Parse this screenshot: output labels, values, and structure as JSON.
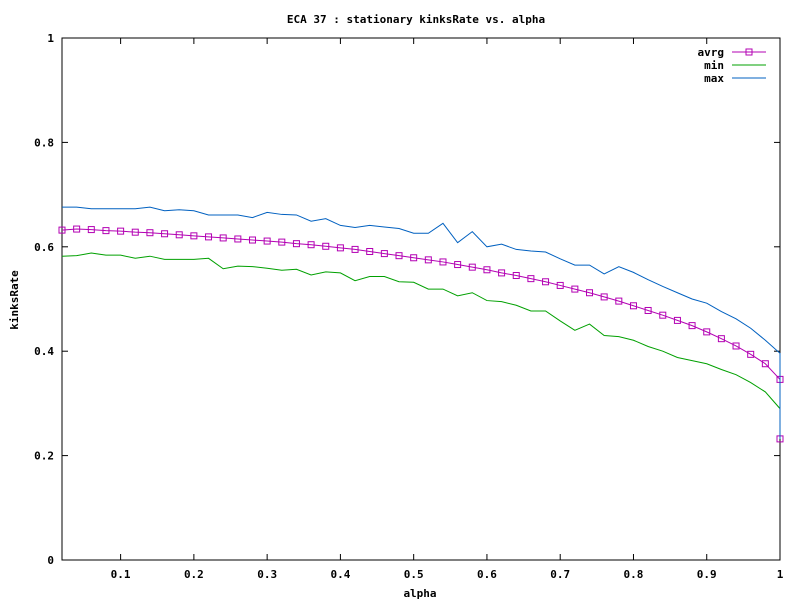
{
  "chart_data": {
    "type": "line",
    "title": "ECA 37 : stationary kinksRate vs. alpha",
    "xlabel": "alpha",
    "ylabel": "kinksRate",
    "xlim": [
      0.02,
      1.0
    ],
    "ylim": [
      0,
      1
    ],
    "xticks": [
      0.1,
      0.2,
      0.3,
      0.4,
      0.5,
      0.6,
      0.7,
      0.8,
      0.9,
      1
    ],
    "xtick_labels": [
      "0.1",
      "0.2",
      "0.3",
      "0.4",
      "0.5",
      "0.6",
      "0.7",
      "0.8",
      "0.9",
      "1"
    ],
    "yticks": [
      0,
      0.2,
      0.4,
      0.6,
      0.8,
      1
    ],
    "ytick_labels": [
      "0",
      "0.2",
      "0.4",
      "0.6",
      "0.8",
      "1"
    ],
    "grid": false,
    "legend_position": "top-right",
    "x": [
      0.02,
      0.04,
      0.06,
      0.08,
      0.1,
      0.12,
      0.14,
      0.16,
      0.18,
      0.2,
      0.22,
      0.24,
      0.26,
      0.28,
      0.3,
      0.32,
      0.34,
      0.36,
      0.38,
      0.4,
      0.42,
      0.44,
      0.46,
      0.48,
      0.5,
      0.52,
      0.54,
      0.56,
      0.58,
      0.6,
      0.62,
      0.64,
      0.66,
      0.68,
      0.7,
      0.72,
      0.74,
      0.76,
      0.78,
      0.8,
      0.82,
      0.84,
      0.86,
      0.88,
      0.9,
      0.92,
      0.94,
      0.96,
      0.98,
      1.0
    ],
    "series": [
      {
        "name": "avrg",
        "color": "#b300b3",
        "marker": "square",
        "values": [
          0.632,
          0.634,
          0.633,
          0.631,
          0.63,
          0.628,
          0.627,
          0.625,
          0.623,
          0.621,
          0.619,
          0.617,
          0.615,
          0.613,
          0.611,
          0.609,
          0.606,
          0.604,
          0.601,
          0.598,
          0.595,
          0.591,
          0.587,
          0.583,
          0.579,
          0.575,
          0.571,
          0.566,
          0.561,
          0.556,
          0.55,
          0.545,
          0.539,
          0.533,
          0.526,
          0.519,
          0.512,
          0.504,
          0.496,
          0.487,
          0.478,
          0.469,
          0.459,
          0.449,
          0.437,
          0.424,
          0.41,
          0.394,
          0.376,
          0.346
        ]
      },
      {
        "name": "min",
        "color": "#00a000",
        "values": [
          0.582,
          0.583,
          0.588,
          0.584,
          0.584,
          0.578,
          0.582,
          0.576,
          0.576,
          0.576,
          0.578,
          0.558,
          0.563,
          0.562,
          0.559,
          0.555,
          0.557,
          0.546,
          0.552,
          0.55,
          0.535,
          0.543,
          0.543,
          0.533,
          0.532,
          0.519,
          0.519,
          0.506,
          0.512,
          0.497,
          0.495,
          0.488,
          0.477,
          0.477,
          0.458,
          0.44,
          0.452,
          0.43,
          0.428,
          0.421,
          0.409,
          0.4,
          0.388,
          0.382,
          0.376,
          0.365,
          0.355,
          0.34,
          0.322,
          0.29
        ]
      },
      {
        "name": "max",
        "color": "#0060c0",
        "values": [
          0.676,
          0.676,
          0.673,
          0.673,
          0.673,
          0.673,
          0.676,
          0.669,
          0.671,
          0.669,
          0.661,
          0.661,
          0.661,
          0.656,
          0.666,
          0.662,
          0.661,
          0.649,
          0.654,
          0.641,
          0.637,
          0.641,
          0.638,
          0.635,
          0.626,
          0.626,
          0.645,
          0.608,
          0.629,
          0.6,
          0.605,
          0.595,
          0.592,
          0.59,
          0.577,
          0.565,
          0.565,
          0.548,
          0.562,
          0.551,
          0.537,
          0.524,
          0.512,
          0.5,
          0.492,
          0.476,
          0.462,
          0.444,
          0.421,
          0.396
        ]
      }
    ],
    "endpoint": {
      "x": 1.0,
      "value": 0.232
    }
  }
}
